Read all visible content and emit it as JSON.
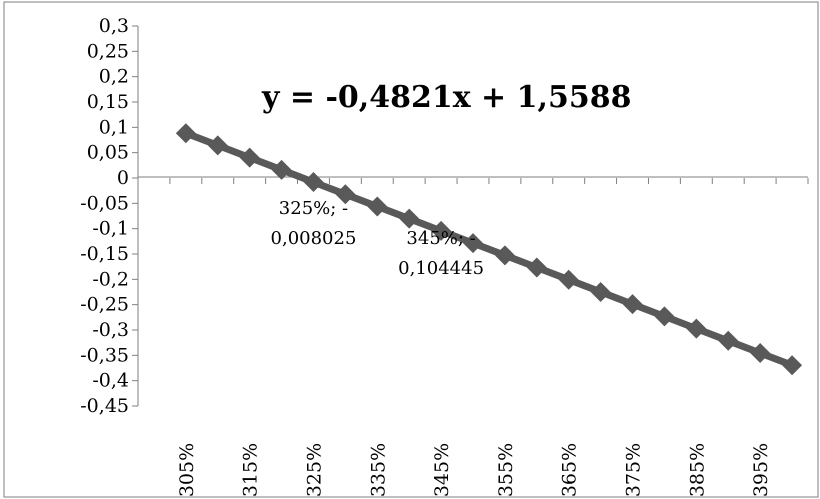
{
  "chart_data": {
    "type": "line",
    "title": "",
    "xlabel": "",
    "ylabel": "",
    "x_labels": [
      "305%",
      "315%",
      "325%",
      "335%",
      "345%",
      "355%",
      "365%",
      "375%",
      "385%",
      "395%"
    ],
    "y_labels": [
      "0,3",
      "0,25",
      "0,2",
      "0,15",
      "0,1",
      "0,05",
      "0",
      "-0,05",
      "-0,1",
      "-0,15",
      "-0,2",
      "-0,25",
      "-0,3",
      "-0,35",
      "-0,4",
      "-0,45"
    ],
    "ylim": [
      -0.45,
      0.3
    ],
    "x": [
      3.05,
      3.1,
      3.15,
      3.2,
      3.25,
      3.3,
      3.35,
      3.4,
      3.45,
      3.5,
      3.55,
      3.6,
      3.65,
      3.7,
      3.75,
      3.8,
      3.85,
      3.9,
      3.95,
      4.0
    ],
    "series": [
      {
        "values": [
          0.0884,
          0.0643,
          0.0402,
          0.0161,
          -0.008,
          -0.0321,
          -0.0562,
          -0.0803,
          -0.1044,
          -0.1285,
          -0.1526,
          -0.1767,
          -0.2008,
          -0.2249,
          -0.249,
          -0.2731,
          -0.2972,
          -0.3213,
          -0.3454,
          -0.3695
        ],
        "color": "#595959"
      }
    ],
    "trendline_equation": "y = -0,4821x + 1,5588",
    "annotations": [
      {
        "x": 3.25,
        "line1": "325%; -",
        "line2": "0,008025"
      },
      {
        "x": 3.45,
        "line1": "345%; -",
        "line2": "0,104445"
      }
    ],
    "grid": false,
    "legend": "none"
  }
}
